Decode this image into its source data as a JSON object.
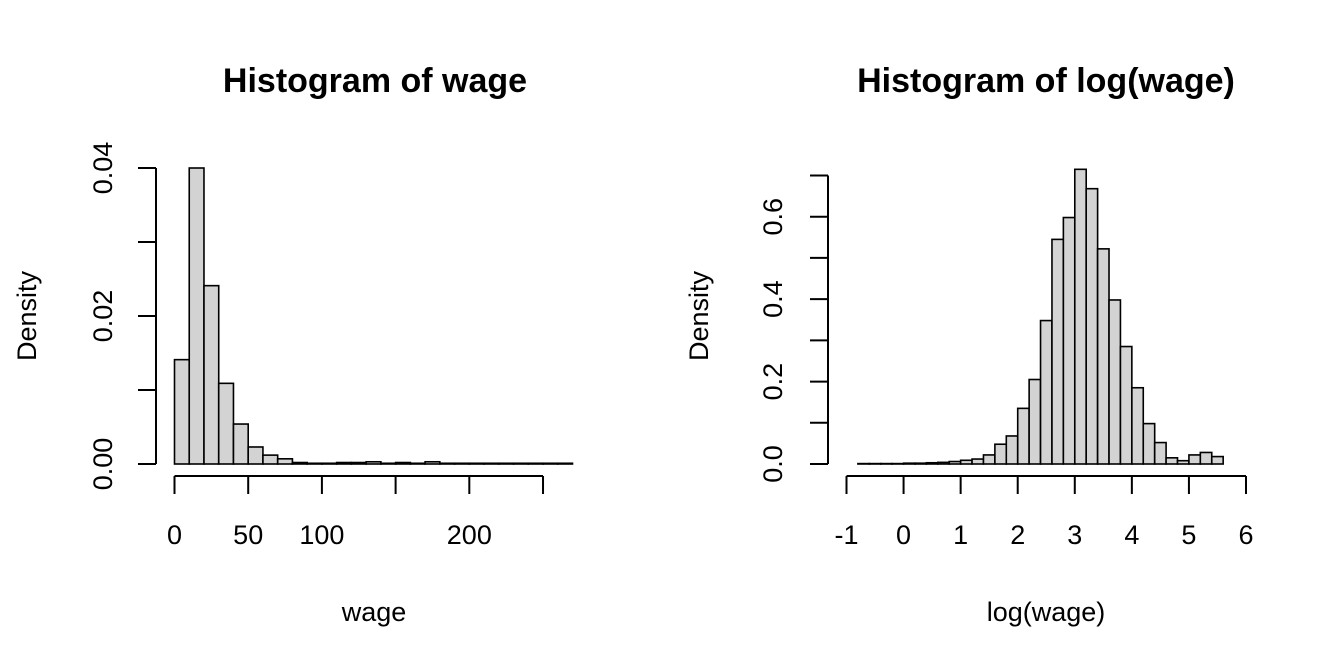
{
  "chart_data": [
    {
      "type": "bar",
      "title": "Histogram of wage",
      "xlabel": "wage",
      "ylabel": "Density",
      "xlim": [
        0,
        270
      ],
      "ylim": [
        0,
        0.04
      ],
      "x_ticks": [
        0,
        50,
        100,
        150,
        200,
        250
      ],
      "x_tick_labels": [
        "0",
        "50",
        "100",
        "",
        "200",
        ""
      ],
      "y_ticks": [
        0,
        0.01,
        0.02,
        0.03,
        0.04
      ],
      "y_tick_labels": [
        "0.00",
        "",
        "0.02",
        "",
        "0.04"
      ],
      "bin_width": 10,
      "bin_start": 0,
      "values": [
        0.0141,
        0.04,
        0.0241,
        0.0109,
        0.0054,
        0.0023,
        0.0012,
        0.0007,
        0.0002,
        0.0001,
        0.0001,
        0.0002,
        0.0002,
        0.0003,
        0.0001,
        0.0002,
        0.0001,
        0.0003,
        0.0001,
        0.0001,
        0.0001,
        0.0001,
        0.0001,
        0.0001,
        0.0001,
        0.0001,
        0.0001
      ],
      "grid": false
    },
    {
      "type": "bar",
      "title": "Histogram of log(wage)",
      "xlabel": "log(wage)",
      "ylabel": "Density",
      "xlim": [
        -1,
        6
      ],
      "ylim": [
        0,
        0.7
      ],
      "x_ticks": [
        -1,
        0,
        1,
        2,
        3,
        4,
        5,
        6
      ],
      "x_tick_labels": [
        "-1",
        "0",
        "1",
        "2",
        "3",
        "4",
        "5",
        "6"
      ],
      "y_ticks": [
        0,
        0.1,
        0.2,
        0.3,
        0.4,
        0.5,
        0.6,
        0.7
      ],
      "y_tick_labels": [
        "0.0",
        "",
        "0.2",
        "",
        "0.4",
        "",
        "0.6",
        ""
      ],
      "bin_width": 0.2,
      "bin_start": -0.8,
      "values": [
        0.001,
        0.001,
        0.001,
        0.001,
        0.002,
        0.002,
        0.003,
        0.004,
        0.006,
        0.009,
        0.012,
        0.022,
        0.048,
        0.068,
        0.135,
        0.205,
        0.348,
        0.545,
        0.598,
        0.715,
        0.668,
        0.522,
        0.398,
        0.285,
        0.185,
        0.098,
        0.052,
        0.015,
        0.008,
        0.022,
        0.028,
        0.018
      ],
      "grid": false
    }
  ]
}
